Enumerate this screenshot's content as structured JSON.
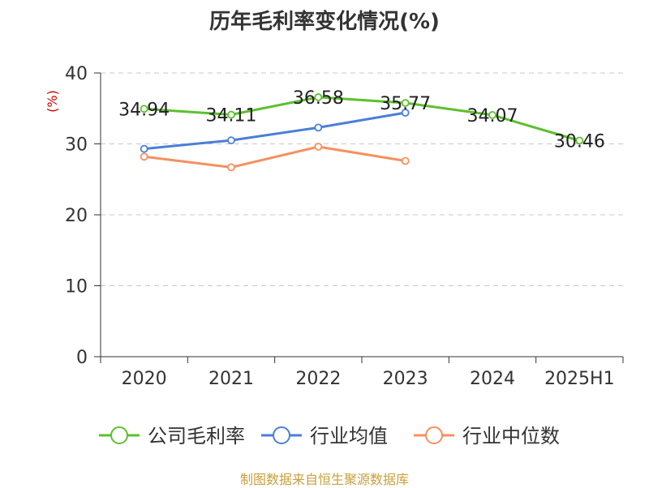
{
  "chart_data": {
    "type": "line",
    "title": "历年毛利率变化情况(%)",
    "ylabel": "(%)",
    "xlabel": "",
    "categories": [
      "2020",
      "2021",
      "2022",
      "2023",
      "2024",
      "2025H1"
    ],
    "ylim": [
      0,
      40
    ],
    "yticks": [
      0,
      10,
      20,
      30,
      40
    ],
    "grid": true,
    "legend_position": "bottom",
    "series": [
      {
        "name": "公司毛利率",
        "color": "#5dc02e",
        "values": [
          34.94,
          34.11,
          36.58,
          35.77,
          34.07,
          30.46
        ],
        "labels": [
          "34.94",
          "34.11",
          "36.58",
          "35.77",
          "34.07",
          "30.46"
        ]
      },
      {
        "name": "行业均值",
        "color": "#4a7fd6",
        "values": [
          29.3,
          30.5,
          32.3,
          34.4,
          null,
          null
        ]
      },
      {
        "name": "行业中位数",
        "color": "#f59060",
        "values": [
          28.2,
          26.7,
          29.6,
          27.6,
          null,
          null
        ]
      }
    ]
  },
  "footer": {
    "source": "制图数据来自恒生聚源数据库"
  }
}
